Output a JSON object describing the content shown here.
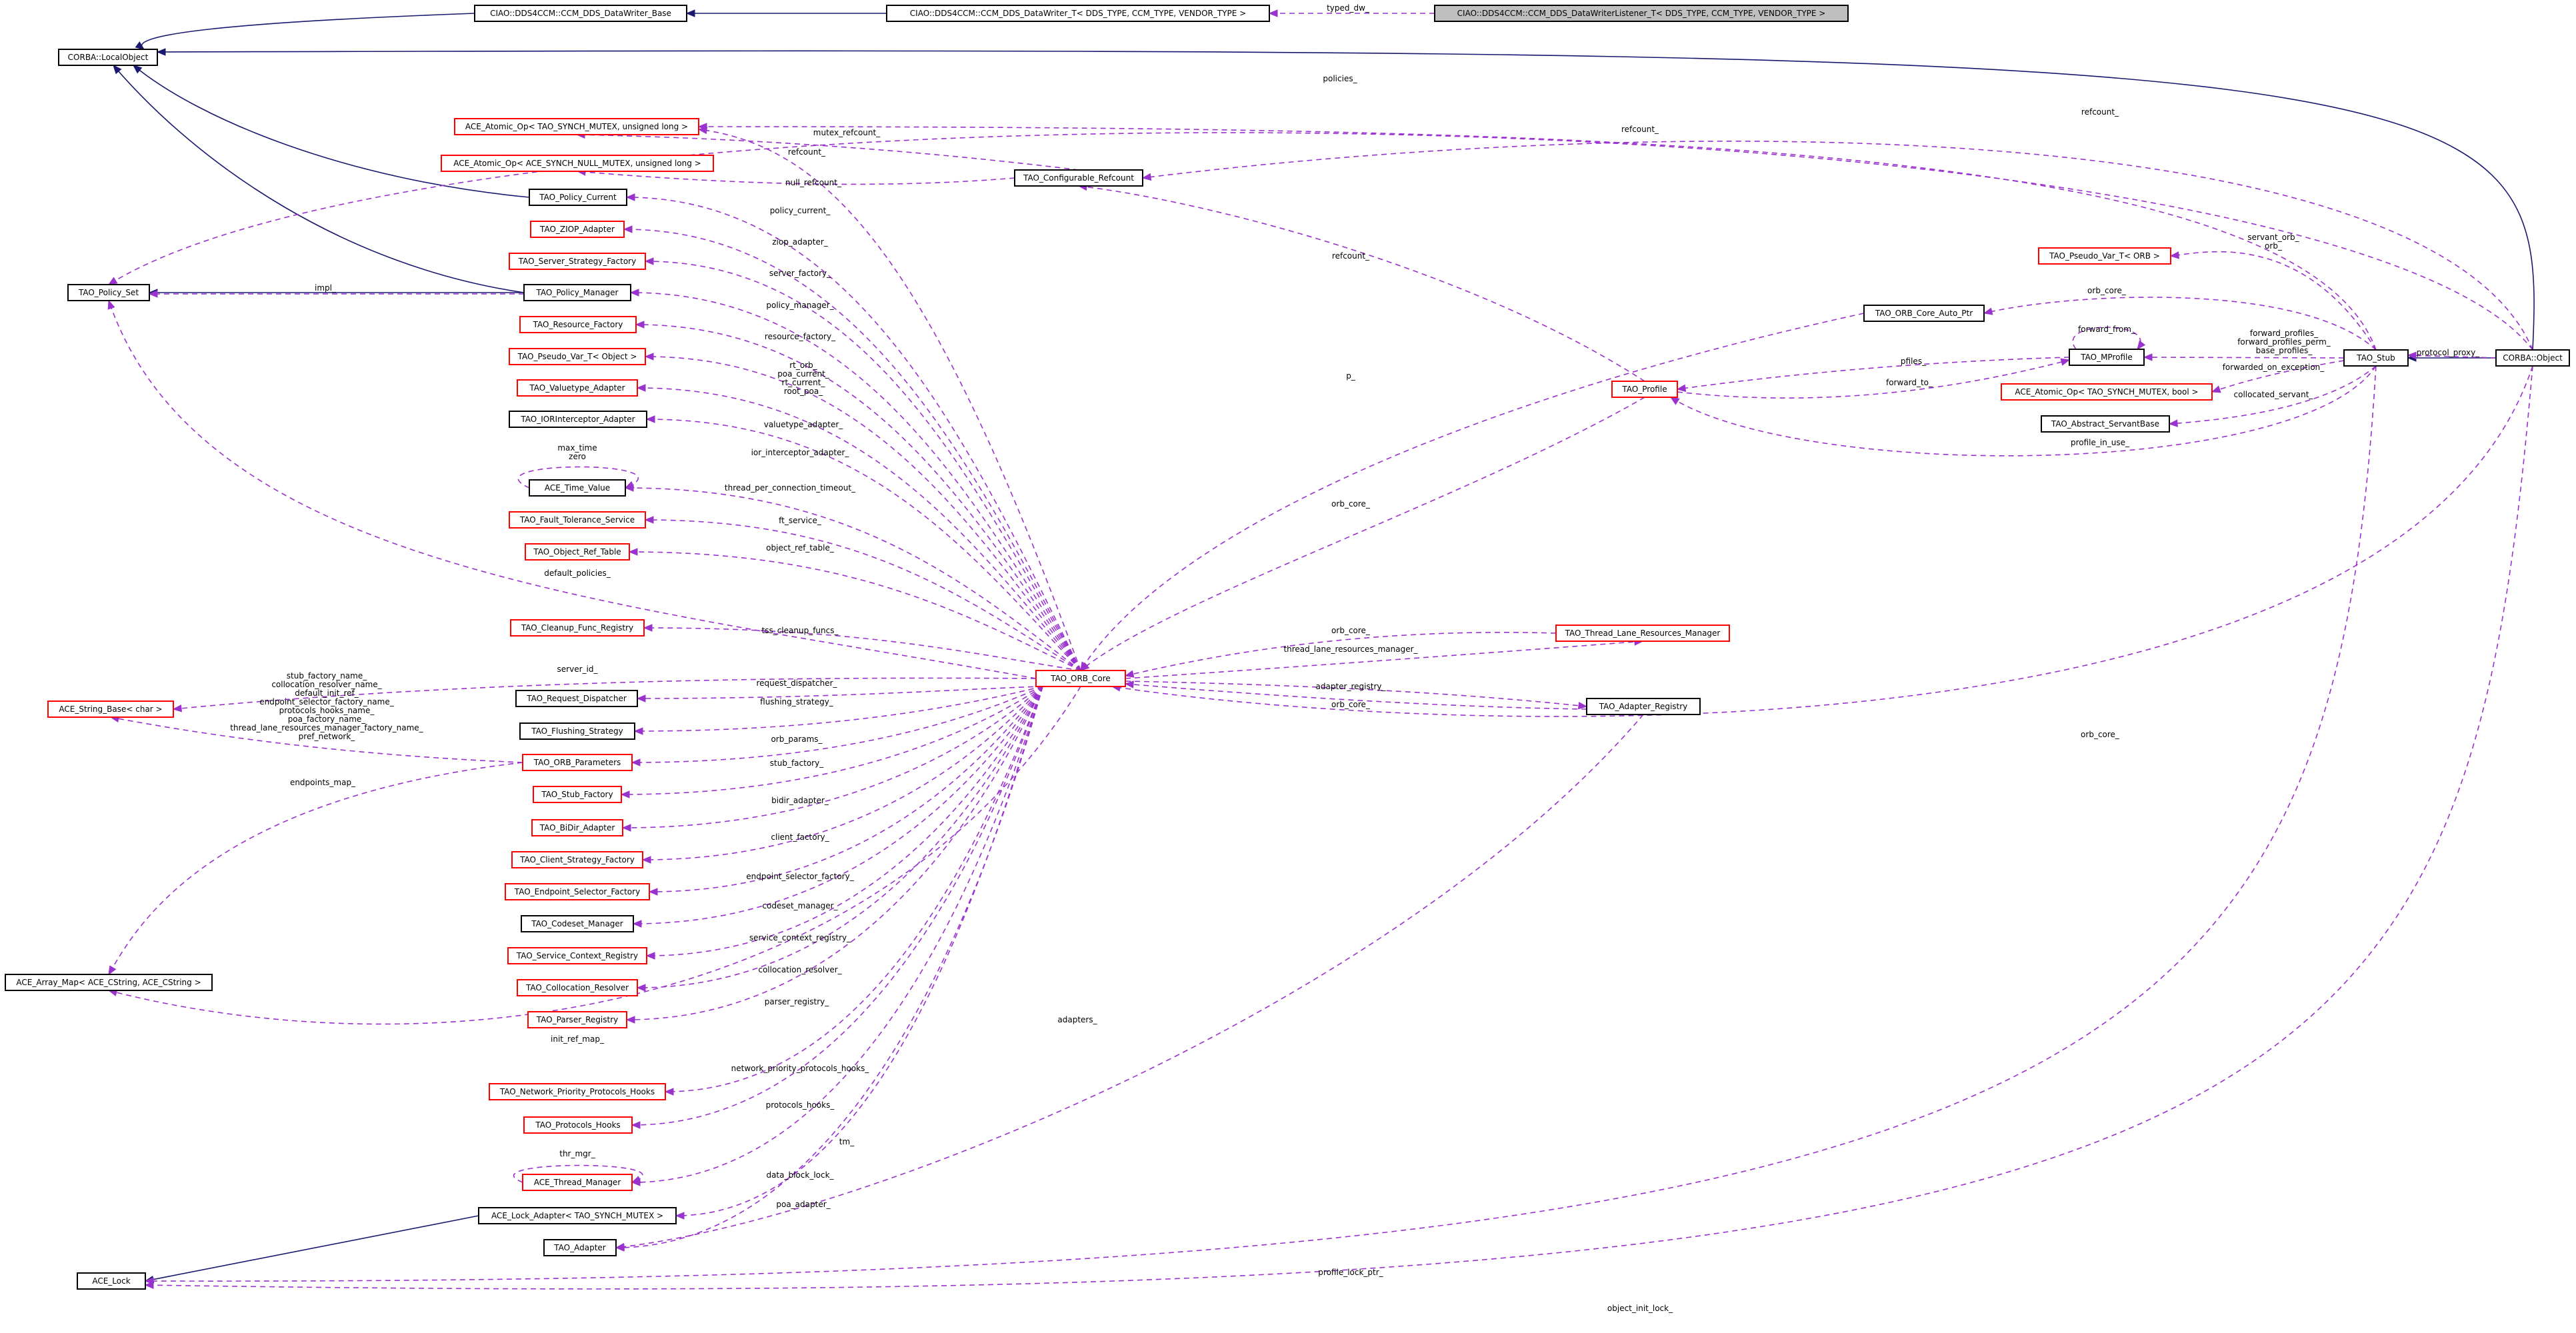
{
  "nodes": {
    "writer_base": "CIAO::DDS4CCM::CCM_DDS_DataWriter_Base",
    "writer_t": "CIAO::DDS4CCM::CCM_DDS_DataWriter_T< DDS_TYPE, CCM_TYPE, VENDOR_TYPE >",
    "listener_t": "CIAO::DDS4CCM::CCM_DDS_DataWriterListener_T< DDS_TYPE, CCM_TYPE, VENDOR_TYPE >",
    "local_object": "CORBA::LocalObject",
    "atomic_ulong": "ACE_Atomic_Op< TAO_SYNCH_MUTEX, unsigned long >",
    "atomic_null": "ACE_Atomic_Op< ACE_SYNCH_NULL_MUTEX, unsigned long >",
    "policy_current": "TAO_Policy_Current",
    "configurable_refcount": "TAO_Configurable_Refcount",
    "ziop_adapter": "TAO_ZIOP_Adapter",
    "server_strategy_factory": "TAO_Server_Strategy_Factory",
    "policy_set": "TAO_Policy_Set",
    "policy_manager": "TAO_Policy_Manager",
    "resource_factory": "TAO_Resource_Factory",
    "pseudo_var_object": "TAO_Pseudo_Var_T< Object >",
    "valuetype_adapter": "TAO_Valuetype_Adapter",
    "ior_interceptor_adapter": "TAO_IORInterceptor_Adapter",
    "time_value": "ACE_Time_Value",
    "fault_tolerance_service": "TAO_Fault_Tolerance_Service",
    "object_ref_table": "TAO_Object_Ref_Table",
    "cleanup_func_registry": "TAO_Cleanup_Func_Registry",
    "string_base": "ACE_String_Base< char >",
    "request_dispatcher": "TAO_Request_Dispatcher",
    "flushing_strategy": "TAO_Flushing_Strategy",
    "orb_parameters": "TAO_ORB_Parameters",
    "stub_factory": "TAO_Stub_Factory",
    "bidir_adapter": "TAO_BiDir_Adapter",
    "client_strategy_factory": "TAO_Client_Strategy_Factory",
    "endpoint_selector_factory": "TAO_Endpoint_Selector_Factory",
    "codeset_manager": "TAO_Codeset_Manager",
    "service_context_registry": "TAO_Service_Context_Registry",
    "collocation_resolver": "TAO_Collocation_Resolver",
    "parser_registry": "TAO_Parser_Registry",
    "array_map": "ACE_Array_Map< ACE_CString, ACE_CString >",
    "network_priority_protocols_hooks": "TAO_Network_Priority_Protocols_Hooks",
    "protocols_hooks": "TAO_Protocols_Hooks",
    "thread_manager": "ACE_Thread_Manager",
    "lock_adapter": "ACE_Lock_Adapter< TAO_SYNCH_MUTEX >",
    "tao_adapter": "TAO_Adapter",
    "ace_lock": "ACE_Lock",
    "orb_core": "TAO_ORB_Core",
    "orb_core_auto_ptr": "TAO_ORB_Core_Auto_Ptr",
    "pseudo_var_orb": "TAO_Pseudo_Var_T< ORB >",
    "mprofile": "TAO_MProfile",
    "profile": "TAO_Profile",
    "atomic_bool": "ACE_Atomic_Op< TAO_SYNCH_MUTEX, bool >",
    "abstract_servant_base": "TAO_Abstract_ServantBase",
    "stub": "TAO_Stub",
    "corba_object": "CORBA::Object",
    "thread_lane_resources_manager": "TAO_Thread_Lane_Resources_Manager",
    "adapter_registry": "TAO_Adapter_Registry"
  },
  "edge_labels": {
    "typed_dw": "typed_dw_",
    "policies": "policies_",
    "refcount_top": "refcount_",
    "refcount_right": "refcount_",
    "mutex_refcount": "mutex_refcount_",
    "refcount_atomic": "refcount_",
    "null_refcount": "null_refcount_",
    "policy_current": "policy_current_",
    "ziop_adapter": "ziop_adapter_",
    "server_factory": "server_factory_",
    "impl": "impl_",
    "policy_manager": "policy_manager_",
    "resource_factory": "resource_factory_",
    "rt_orb_group": [
      "rt_orb_",
      "poa_current_",
      "rt_current_",
      "root_poa_"
    ],
    "valuetype_adapter": "valuetype_adapter_",
    "ior_interceptor_adapter": "ior_interceptor_adapter_",
    "max_time_group": [
      "max_time",
      "zero"
    ],
    "thread_per_connection_timeout": "thread_per_connection_timeout_",
    "ft_service": "ft_service_",
    "object_ref_table": "object_ref_table_",
    "default_policies": "default_policies_",
    "tss_cleanup_funcs": "tss_cleanup_funcs_",
    "server_id": "server_id_",
    "string_names_group": [
      "stub_factory_name_",
      "collocation_resolver_name_",
      "default_init_ref_",
      "endpoint_selector_factory_name_",
      "protocols_hooks_name_",
      "poa_factory_name_",
      "thread_lane_resources_manager_factory_name_",
      "pref_network_"
    ],
    "request_dispatcher": "request_dispatcher_",
    "flushing_strategy": "flushing_strategy_",
    "orb_params": "orb_params_",
    "endpoints_map": "endpoints_map_",
    "stub_factory": "stub_factory_",
    "bidir_adapter": "bidir_adapter_",
    "client_factory": "client_factory_",
    "endpoint_selector_factory": "endpoint_selector_factory_",
    "codeset_manager": "codeset_manager_",
    "service_context_registry": "service_context_registry_",
    "collocation_resolver": "collocation_resolver_",
    "parser_registry": "parser_registry_",
    "init_ref_map": "init_ref_map_",
    "network_priority_protocols_hooks": "network_priority_protocols_hooks_",
    "protocols_hooks": "protocols_hooks_",
    "tm": "tm_",
    "thr_mgr": "thr_mgr_",
    "data_block_lock": "data_block_lock_",
    "poa_adapter": "poa_adapter_",
    "p": "p_",
    "refcount_profile": "refcount_",
    "orb_core_profile": "orb_core_",
    "servant_orb_group": [
      "servant_orb_",
      "orb_"
    ],
    "orb_core_auto": "orb_core_",
    "forward_from": "forward_from_",
    "pfiles": "pfiles_",
    "forward_to": "forward_to_",
    "forward_group": [
      "forward_profiles_",
      "forward_profiles_perm_",
      "base_profiles_"
    ],
    "forwarded_on_exception": "forwarded_on_exception_",
    "collocated_servant": "collocated_servant_",
    "profile_in_use": "profile_in_use_",
    "protocol_proxy": "protocol_proxy_",
    "orb_core_tlrm": "orb_core_",
    "thread_lane_resources_manager": "thread_lane_resources_manager_",
    "adapter_registry": "adapter_registry_",
    "orb_core_adapter_reg": "orb_core_",
    "orb_core_object": "orb_core_",
    "adapters": "adapters_",
    "profile_lock_ptr": "profile_lock_ptr_",
    "object_init_lock": "object_init_lock_"
  }
}
